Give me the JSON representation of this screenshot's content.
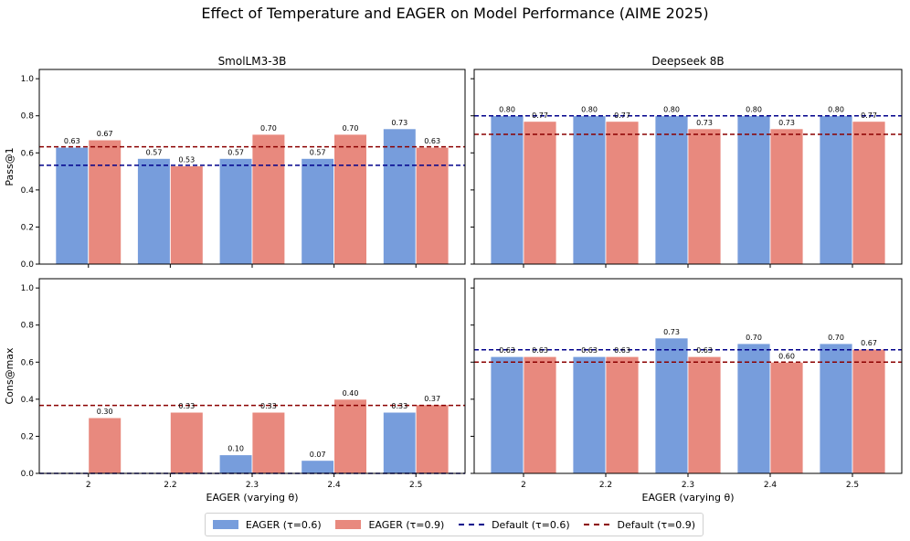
{
  "chart_data": {
    "type": "bar",
    "suptitle": "Effect of Temperature and EAGER on Model Performance (AIME 2025)",
    "categories": [
      "2",
      "2.2",
      "2.3",
      "2.4",
      "2.5"
    ],
    "xlabel": "EAGER (varying θ)",
    "ylim": [
      0,
      1.05
    ],
    "yticks": [
      "0.0",
      "0.2",
      "0.4",
      "0.6",
      "0.8",
      "1.0"
    ],
    "colors": {
      "eager_06": "#779ddc",
      "eager_09": "#e8897e",
      "default_06": "#00008b",
      "default_09": "#8b0000"
    },
    "legend": {
      "position": "bottom-center",
      "entries": [
        "EAGER (τ=0.6)",
        "EAGER (τ=0.9)",
        "Default (τ=0.6)",
        "Default (τ=0.9)"
      ]
    },
    "panels": [
      {
        "id": "smol-pass",
        "title": "SmolLM3-3B",
        "ylabel": "Pass@1",
        "series": [
          {
            "name": "EAGER (τ=0.6)",
            "values": [
              0.63,
              0.57,
              0.57,
              0.57,
              0.73
            ],
            "labels": [
              "0.63",
              "0.57",
              "0.57",
              "0.57",
              "0.73"
            ]
          },
          {
            "name": "EAGER (τ=0.9)",
            "values": [
              0.67,
              0.53,
              0.7,
              0.7,
              0.63
            ],
            "labels": [
              "0.67",
              "0.53",
              "0.70",
              "0.70",
              "0.63"
            ]
          }
        ],
        "defaults": [
          0.533,
          0.633
        ]
      },
      {
        "id": "deep-pass",
        "title": "Deepseek 8B",
        "ylabel": "",
        "series": [
          {
            "name": "EAGER (τ=0.6)",
            "values": [
              0.8,
              0.8,
              0.8,
              0.8,
              0.8
            ],
            "labels": [
              "0.80",
              "0.80",
              "0.80",
              "0.80",
              "0.80"
            ]
          },
          {
            "name": "EAGER (τ=0.9)",
            "values": [
              0.77,
              0.77,
              0.73,
              0.73,
              0.77
            ],
            "labels": [
              "0.77",
              "0.77",
              "0.73",
              "0.73",
              "0.77"
            ]
          }
        ],
        "defaults": [
          0.8,
          0.7
        ]
      },
      {
        "id": "smol-cons",
        "title": "",
        "ylabel": "Cons@max",
        "series": [
          {
            "name": "EAGER (τ=0.6)",
            "values": [
              0,
              0,
              0.1,
              0.07,
              0.33
            ],
            "labels": [
              "",
              "",
              "0.10",
              "0.07",
              "0.33"
            ]
          },
          {
            "name": "EAGER (τ=0.9)",
            "values": [
              0.3,
              0.33,
              0.33,
              0.4,
              0.37
            ],
            "labels": [
              "0.30",
              "0.33",
              "0.33",
              "0.40",
              "0.37"
            ]
          }
        ],
        "defaults": [
          0.0,
          0.367
        ]
      },
      {
        "id": "deep-cons",
        "title": "",
        "ylabel": "",
        "series": [
          {
            "name": "EAGER (τ=0.6)",
            "values": [
              0.63,
              0.63,
              0.73,
              0.7,
              0.7
            ],
            "labels": [
              "0.63",
              "0.63",
              "0.73",
              "0.70",
              "0.70"
            ]
          },
          {
            "name": "EAGER (τ=0.9)",
            "values": [
              0.63,
              0.63,
              0.63,
              0.6,
              0.67
            ],
            "labels": [
              "0.63",
              "0.63",
              "0.63",
              "0.60",
              "0.67"
            ]
          }
        ],
        "defaults": [
          0.667,
          0.6
        ]
      }
    ]
  }
}
